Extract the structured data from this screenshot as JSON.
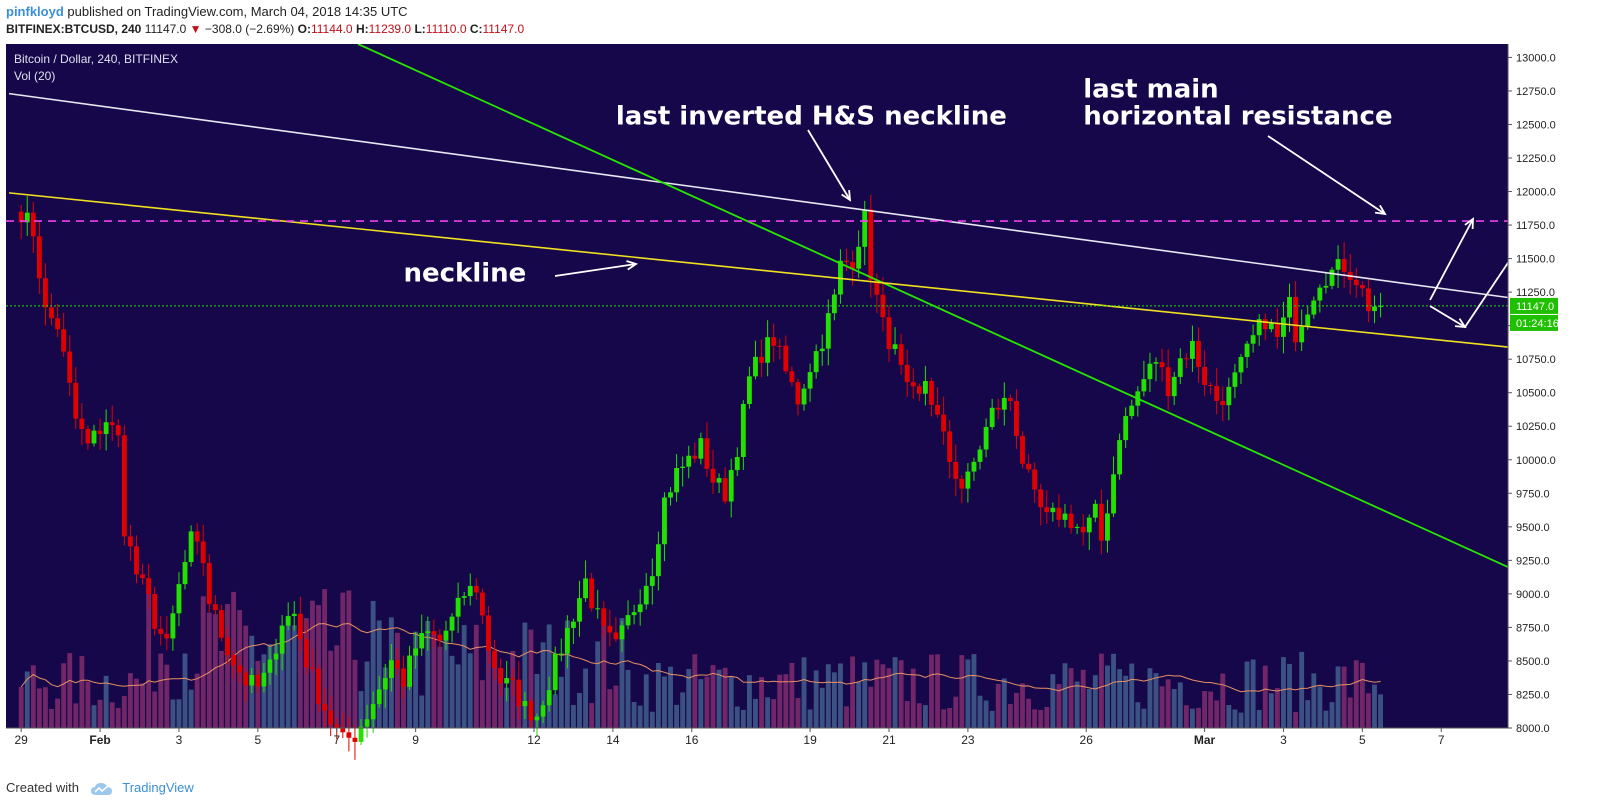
{
  "header": {
    "author": "pinfkloyd",
    "published": "published on TradingView.com, March 04, 2018 14:35 UTC",
    "symbol": "BITFINEX:BTCUSD, 240",
    "last": "11147.0",
    "change": "−308.0 (−2.69%)",
    "o_label": "O:",
    "o": "11144.0",
    "h_label": "H:",
    "h": "11239.0",
    "l_label": "L:",
    "l": "11110.0",
    "c_label": "C:",
    "c": "11147.0"
  },
  "footer": {
    "created": "Created with",
    "brand": "TradingView",
    "logo_icon": "tradingview-cloud-icon"
  },
  "colors": {
    "background": "#16074a",
    "bull": "#22e000",
    "bear": "#e00000",
    "white_line": "#e8e8f0",
    "green_line": "#27e600",
    "yellow_line": "#f0e020",
    "magenta_line": "#f040f0",
    "volume_ma": "#e89060",
    "price_tag": "#1ec000"
  },
  "chart_data": {
    "type": "candlestick",
    "title": "Bitcoin / Dollar, 240, BITFINEX",
    "indicator": "Vol (20)",
    "ylim": [
      8000,
      13100
    ],
    "y_ticks": [
      "13000.0",
      "12750.0",
      "12500.0",
      "12250.0",
      "12000.0",
      "11750.0",
      "11500.0",
      "11250.0",
      "11000.0",
      "10750.0",
      "10500.0",
      "10250.0",
      "10000.0",
      "9750.0",
      "9500.0",
      "9250.0",
      "9000.0",
      "8750.0",
      "8500.0",
      "8250.0",
      "8000.0"
    ],
    "x_ticks": [
      {
        "label": "29",
        "pos": 0.0
      },
      {
        "label": "Feb",
        "pos": 13.0
      },
      {
        "label": "3",
        "pos": 26.0
      },
      {
        "label": "5",
        "pos": 39.0
      },
      {
        "label": "7",
        "pos": 52.0
      },
      {
        "label": "9",
        "pos": 65.0
      },
      {
        "label": "12",
        "pos": 84.5
      },
      {
        "label": "14",
        "pos": 97.5
      },
      {
        "label": "16",
        "pos": 110.5
      },
      {
        "label": "19",
        "pos": 130.0
      },
      {
        "label": "21",
        "pos": 143.0
      },
      {
        "label": "23",
        "pos": 156.0
      },
      {
        "label": "26",
        "pos": 175.5
      },
      {
        "label": "Mar",
        "pos": 195.0
      },
      {
        "label": "3",
        "pos": 208.0
      },
      {
        "label": "5",
        "pos": 221.0
      },
      {
        "label": "7",
        "pos": 234.0
      }
    ],
    "xlim": [
      -2.5,
      245
    ],
    "price_path": [
      [
        0,
        11850
      ],
      [
        2,
        11700
      ],
      [
        4,
        11100
      ],
      [
        6,
        11000
      ],
      [
        9,
        10300
      ],
      [
        11,
        10100
      ],
      [
        14,
        10300
      ],
      [
        16,
        10150
      ],
      [
        17,
        9500
      ],
      [
        19,
        9150
      ],
      [
        21,
        8950
      ],
      [
        22,
        8800
      ],
      [
        24,
        8600
      ],
      [
        26,
        9050
      ],
      [
        28,
        9400
      ],
      [
        30,
        9250
      ],
      [
        31,
        8950
      ],
      [
        33,
        8700
      ],
      [
        35,
        8500
      ],
      [
        37,
        8350
      ],
      [
        39,
        8300
      ],
      [
        41,
        8450
      ],
      [
        43,
        8800
      ],
      [
        45,
        8850
      ],
      [
        47,
        8500
      ],
      [
        49,
        8250
      ],
      [
        51,
        8050
      ],
      [
        53,
        7900
      ],
      [
        55,
        7950
      ],
      [
        57,
        8100
      ],
      [
        59,
        8300
      ],
      [
        61,
        8500
      ],
      [
        63,
        8350
      ],
      [
        65,
        8600
      ],
      [
        67,
        8700
      ],
      [
        69,
        8650
      ],
      [
        71,
        8800
      ],
      [
        73,
        9000
      ],
      [
        75,
        9050
      ],
      [
        77,
        8600
      ],
      [
        79,
        8350
      ],
      [
        81,
        8300
      ],
      [
        83,
        8150
      ],
      [
        85,
        8100
      ],
      [
        87,
        8350
      ],
      [
        89,
        8600
      ],
      [
        91,
        8850
      ],
      [
        93,
        9100
      ],
      [
        94,
        8950
      ],
      [
        96,
        8700
      ],
      [
        98,
        8600
      ],
      [
        100,
        8800
      ],
      [
        102,
        9000
      ],
      [
        104,
        9200
      ],
      [
        106,
        9700
      ],
      [
        108,
        9900
      ],
      [
        110,
        10000
      ],
      [
        112,
        10100
      ],
      [
        114,
        9850
      ],
      [
        116,
        9750
      ],
      [
        118,
        10100
      ],
      [
        120,
        10600
      ],
      [
        122,
        10800
      ],
      [
        124,
        10900
      ],
      [
        126,
        10650
      ],
      [
        128,
        10450
      ],
      [
        130,
        10700
      ],
      [
        132,
        10900
      ],
      [
        134,
        11200
      ],
      [
        135,
        11450
      ],
      [
        137,
        11500
      ],
      [
        139,
        11800
      ],
      [
        140,
        11400
      ],
      [
        142,
        11000
      ],
      [
        144,
        10800
      ],
      [
        146,
        10500
      ],
      [
        148,
        10450
      ],
      [
        149,
        10600
      ],
      [
        151,
        10300
      ],
      [
        153,
        10000
      ],
      [
        155,
        9800
      ],
      [
        156,
        9850
      ],
      [
        158,
        10100
      ],
      [
        160,
        10350
      ],
      [
        161,
        10400
      ],
      [
        163,
        10450
      ],
      [
        165,
        10000
      ],
      [
        167,
        9700
      ],
      [
        169,
        9550
      ],
      [
        171,
        9600
      ],
      [
        173,
        9550
      ],
      [
        175,
        9450
      ],
      [
        177,
        9600
      ],
      [
        178,
        9400
      ],
      [
        180,
        9900
      ],
      [
        181,
        10200
      ],
      [
        183,
        10400
      ],
      [
        185,
        10600
      ],
      [
        187,
        10750
      ],
      [
        189,
        10550
      ],
      [
        191,
        10750
      ],
      [
        193,
        10850
      ],
      [
        195,
        10600
      ],
      [
        197,
        10450
      ],
      [
        199,
        10500
      ],
      [
        201,
        10700
      ],
      [
        203,
        10900
      ],
      [
        205,
        11050
      ],
      [
        207,
        10900
      ],
      [
        209,
        11150
      ],
      [
        210,
        10950
      ],
      [
        212,
        11150
      ],
      [
        214,
        11350
      ],
      [
        216,
        11400
      ],
      [
        218,
        11450
      ],
      [
        220,
        11350
      ],
      [
        222,
        11150
      ],
      [
        224,
        11150
      ]
    ],
    "overlays": {
      "white_line": [
        [
          -2,
          12730
        ],
        [
          245,
          11210
        ]
      ],
      "green_line": [
        [
          55.5,
          13100
        ],
        [
          245,
          9200
        ]
      ],
      "yellow_line": [
        [
          -2,
          11990
        ],
        [
          245,
          10840
        ]
      ],
      "magenta_line_y": 11780,
      "current_price": 11147.0
    },
    "annotations": [
      {
        "text": "last inverted H&S neckline",
        "lx": 98,
        "ly": 12500
      },
      {
        "text": "last main",
        "lx": 175,
        "ly": 12700
      },
      {
        "text": "horizontal resistance",
        "lx": 175,
        "ly": 12500
      },
      {
        "text": "neckline",
        "lx": 63,
        "ly": 11330
      }
    ],
    "price_tag": "11147.0",
    "countdown": "01:24:16"
  }
}
